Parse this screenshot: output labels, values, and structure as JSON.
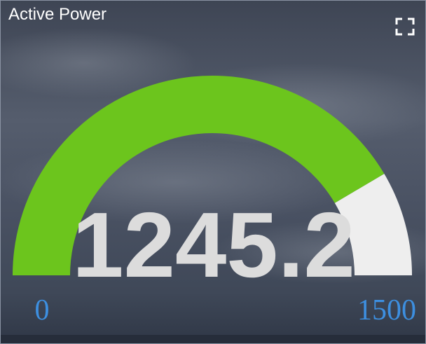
{
  "chart_data": {
    "type": "gauge",
    "title": "Active Power",
    "value": 1245.2,
    "ylim": [
      0,
      1500
    ],
    "color": "#6cc51d",
    "track_color": "#eeeeee",
    "label_color": "#3d8fe0"
  }
}
